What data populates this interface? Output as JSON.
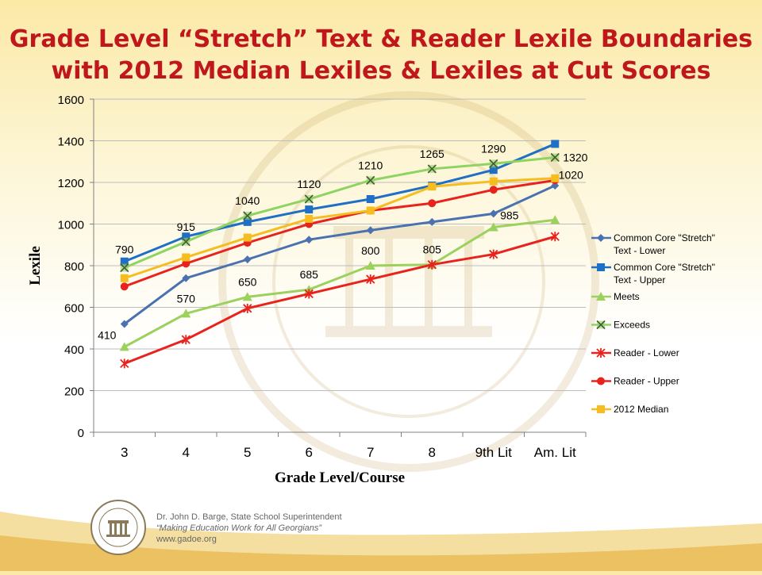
{
  "title": {
    "line1": "Grade Level “Stretch” Text  & Reader Lexile Boundaries",
    "line2": "with 2012 Median Lexiles & Lexiles at Cut Scores"
  },
  "footer": {
    "name": "Dr. John D. Barge, State School Superintendent",
    "slogan": "“Making Education Work for All Georgians”",
    "url": "www.gadoe.org"
  },
  "colors": {
    "title": "#c0171c",
    "background_top": "#fbe9a6"
  },
  "chart_data": {
    "type": "line",
    "xlabel": "Grade Level/Course",
    "ylabel": "Lexile",
    "ylim": [
      0,
      1600
    ],
    "yticks": [
      0,
      200,
      400,
      600,
      800,
      1000,
      1200,
      1400,
      1600
    ],
    "categories": [
      "3",
      "4",
      "5",
      "6",
      "7",
      "8",
      "9th Lit",
      "Am. Lit"
    ],
    "grid": true,
    "legend_position": "right",
    "series": [
      {
        "name": "Common Core \"Stretch\" Text - Lower",
        "legend_lines": [
          "Common Core \"Stretch\"",
          "Text - Lower"
        ],
        "color": "#4a72b0",
        "marker": "diamond",
        "values": [
          520,
          740,
          830,
          925,
          970,
          1010,
          1050,
          1185
        ]
      },
      {
        "name": "Common Core \"Stretch\" Text - Upper",
        "legend_lines": [
          "Common Core \"Stretch\"",
          "Text - Upper"
        ],
        "color": "#1f6fc6",
        "marker": "square",
        "values": [
          820,
          940,
          1010,
          1070,
          1120,
          1185,
          1260,
          1385
        ]
      },
      {
        "name": "Meets",
        "legend_lines": [
          "Meets"
        ],
        "color": "#9bd15c",
        "marker": "triangle",
        "values": [
          410,
          570,
          650,
          685,
          800,
          805,
          985,
          1020
        ],
        "labels": [
          "410",
          "570",
          "650",
          "685",
          "800",
          "805",
          "985",
          "1020"
        ]
      },
      {
        "name": "Exceeds",
        "legend_lines": [
          "Exceeds"
        ],
        "color": "#8ed462",
        "marker": "x",
        "values": [
          790,
          915,
          1040,
          1120,
          1210,
          1265,
          1290,
          1320
        ],
        "labels": [
          "790",
          "915",
          "1040",
          "1120",
          "1210",
          "1265",
          "1290",
          "1320"
        ]
      },
      {
        "name": "Reader - Lower",
        "legend_lines": [
          "Reader - Lower"
        ],
        "color": "#e8231d",
        "marker": "star",
        "values": [
          330,
          445,
          595,
          665,
          735,
          805,
          855,
          940
        ]
      },
      {
        "name": "Reader - Upper",
        "legend_lines": [
          "Reader - Upper"
        ],
        "color": "#e8231d",
        "marker": "circle",
        "values": [
          700,
          810,
          910,
          1000,
          1065,
          1100,
          1165,
          1210
        ]
      },
      {
        "name": "2012 Median",
        "legend_lines": [
          "2012 Median"
        ],
        "color": "#f5bd1f",
        "marker": "square",
        "values": [
          740,
          840,
          935,
          1025,
          1065,
          1180,
          1205,
          1220
        ]
      }
    ]
  }
}
